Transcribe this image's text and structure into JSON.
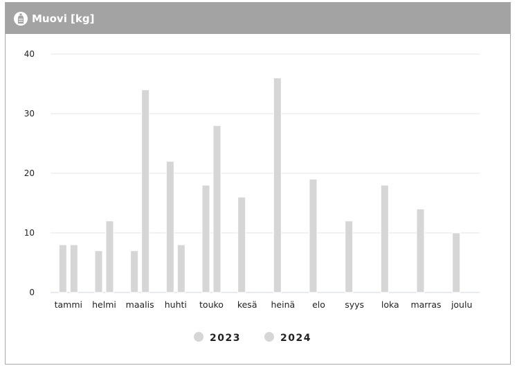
{
  "card": {
    "title": "Muovi [kg]",
    "icon": "bottle-icon"
  },
  "chart_data": {
    "type": "bar",
    "categories": [
      "tammi",
      "helmi",
      "maalis",
      "huhti",
      "touko",
      "kesä",
      "heinä",
      "elo",
      "syys",
      "loka",
      "marras",
      "joulu"
    ],
    "series": [
      {
        "name": "2023",
        "values": [
          8,
          7,
          7,
          22,
          18,
          16,
          36,
          19,
          12,
          18,
          14,
          10
        ]
      },
      {
        "name": "2024",
        "values": [
          8,
          12,
          34,
          8,
          28,
          null,
          null,
          null,
          null,
          null,
          null,
          null
        ]
      }
    ],
    "yticks": [
      0,
      10,
      20,
      30,
      40
    ],
    "ylim": [
      0,
      40
    ],
    "grid": true,
    "legend": "bottom",
    "colors": {
      "bar": "#d6d6d6",
      "bar_stroke": "#ffffff",
      "grid": "#e6e6e6",
      "axis": "#cfd6e6",
      "text": "#222222",
      "legend_marker": "#d6d6d6"
    }
  }
}
